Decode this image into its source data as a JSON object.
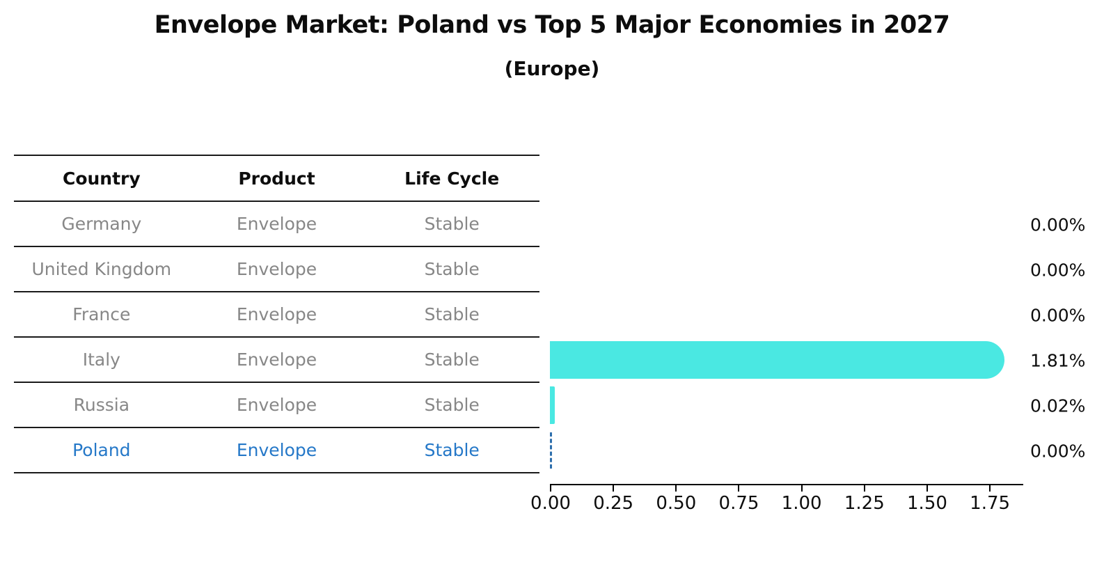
{
  "title": "Envelope Market: Poland vs Top 5 Major Economies in 2027",
  "subtitle": "(Europe)",
  "colors": {
    "bar": "#4ae8e2",
    "highlight": "#2578c8",
    "muted": "#878787",
    "ink": "#0d0d0d",
    "dash": "#2e6fad"
  },
  "table": {
    "headers": [
      "Country",
      "Product",
      "Life Cycle"
    ],
    "rows": [
      {
        "country": "Germany",
        "product": "Envelope",
        "life_cycle": "Stable",
        "highlight": false
      },
      {
        "country": "United Kingdom",
        "product": "Envelope",
        "life_cycle": "Stable",
        "highlight": false
      },
      {
        "country": "France",
        "product": "Envelope",
        "life_cycle": "Stable",
        "highlight": false
      },
      {
        "country": "Italy",
        "product": "Envelope",
        "life_cycle": "Stable",
        "highlight": false
      },
      {
        "country": "Russia",
        "product": "Envelope",
        "life_cycle": "Stable",
        "highlight": false
      },
      {
        "country": "Poland",
        "product": "Envelope",
        "life_cycle": "Stable",
        "highlight": true
      }
    ]
  },
  "chart_data": {
    "type": "bar",
    "orientation": "horizontal",
    "title": "Envelope Market: Poland vs Top 5 Major Economies in 2027",
    "subtitle": "(Europe)",
    "categories": [
      "Germany",
      "United Kingdom",
      "France",
      "Italy",
      "Russia",
      "Poland"
    ],
    "values": [
      0.0,
      0.0,
      0.0,
      1.81,
      0.02,
      0.0
    ],
    "value_labels": [
      "0.00%",
      "0.00%",
      "0.00%",
      "1.81%",
      "0.02%",
      "0.00%"
    ],
    "x_ticks": [
      "0.00",
      "0.25",
      "0.50",
      "0.75",
      "1.00",
      "1.25",
      "1.50",
      "1.75"
    ],
    "xlim": [
      0,
      1.88
    ],
    "highlight_category": "Poland",
    "grid": false,
    "legend": false
  }
}
